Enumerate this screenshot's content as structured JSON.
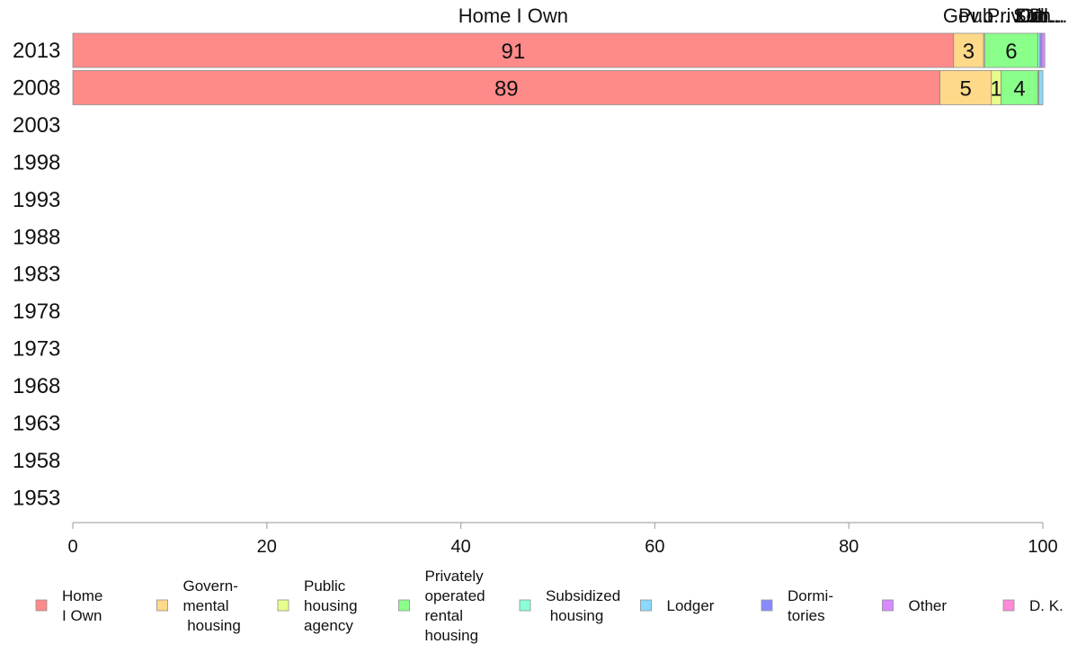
{
  "chart_data": {
    "type": "bar",
    "orientation": "horizontal",
    "stacked": true,
    "categories": [
      "2013",
      "2008",
      "2003",
      "1998",
      "1993",
      "1988",
      "1983",
      "1978",
      "1973",
      "1968",
      "1963",
      "1958",
      "1953"
    ],
    "series": [
      {
        "name": "Home I Own",
        "legend_lines": [
          "Home",
          "I Own"
        ],
        "top_label": "Home I Own",
        "color": "#ff8a8a",
        "values": [
          90.8,
          89.4,
          null,
          null,
          null,
          null,
          null,
          null,
          null,
          null,
          null,
          null,
          null
        ],
        "data_labels": [
          "91",
          "89",
          "",
          "",
          "",
          "",
          "",
          "",
          "",
          "",
          "",
          "",
          ""
        ]
      },
      {
        "name": "Govern-mental housing",
        "legend_lines": [
          "Govern-",
          "mental",
          " housing"
        ],
        "top_label": "Gov...",
        "color": "#ffd98a",
        "values": [
          3.1,
          5.3,
          null,
          null,
          null,
          null,
          null,
          null,
          null,
          null,
          null,
          null,
          null
        ],
        "data_labels": [
          "3",
          "5",
          "",
          "",
          "",
          "",
          "",
          "",
          "",
          "",
          "",
          "",
          ""
        ]
      },
      {
        "name": "Public housing agency",
        "legend_lines": [
          "Public",
          "housing",
          "agency"
        ],
        "top_label": "Pub...",
        "color": "#e6ff8a",
        "values": [
          0.1,
          1.0,
          null,
          null,
          null,
          null,
          null,
          null,
          null,
          null,
          null,
          null,
          null
        ],
        "data_labels": [
          "",
          "1",
          "",
          "",
          "",
          "",
          "",
          "",
          "",
          "",
          "",
          "",
          ""
        ]
      },
      {
        "name": "Privately operated rental housing",
        "legend_lines": [
          "Privately",
          "operated",
          "rental",
          "housing"
        ],
        "top_label": "Priv...",
        "color": "#8aff8a",
        "values": [
          5.5,
          3.8,
          null,
          null,
          null,
          null,
          null,
          null,
          null,
          null,
          null,
          null,
          null
        ],
        "data_labels": [
          "6",
          "4",
          "",
          "",
          "",
          "",
          "",
          "",
          "",
          "",
          "",
          "",
          ""
        ]
      },
      {
        "name": "Subsidized housing",
        "legend_lines": [
          "Subsidized",
          " housing"
        ],
        "top_label": "Sub...",
        "color": "#8affd9",
        "values": [
          0.2,
          0.1,
          null,
          null,
          null,
          null,
          null,
          null,
          null,
          null,
          null,
          null,
          null
        ],
        "data_labels": [
          "",
          "",
          "",
          "",
          "",
          "",
          "",
          "",
          "",
          "",
          "",
          "",
          ""
        ]
      },
      {
        "name": "Lodger",
        "legend_lines": [
          "Lodger"
        ],
        "top_label": "Lod...",
        "color": "#8ad9ff",
        "values": [
          0.0,
          0.4,
          null,
          null,
          null,
          null,
          null,
          null,
          null,
          null,
          null,
          null,
          null
        ],
        "data_labels": [
          "",
          "",
          "",
          "",
          "",
          "",
          "",
          "",
          "",
          "",
          "",
          "",
          ""
        ]
      },
      {
        "name": "Dormi-tories",
        "legend_lines": [
          "Dormi-",
          "tories"
        ],
        "top_label": "Dor...",
        "color": "#8a8aff",
        "values": [
          0.2,
          0.0,
          null,
          null,
          null,
          null,
          null,
          null,
          null,
          null,
          null,
          null,
          null
        ],
        "data_labels": [
          "",
          "",
          "",
          "",
          "",
          "",
          "",
          "",
          "",
          "",
          "",
          "",
          ""
        ]
      },
      {
        "name": "Other",
        "legend_lines": [
          "Other"
        ],
        "top_label": "Oth...",
        "color": "#d98aff",
        "values": [
          0.3,
          0.0,
          null,
          null,
          null,
          null,
          null,
          null,
          null,
          null,
          null,
          null,
          null
        ],
        "data_labels": [
          "",
          "",
          "",
          "",
          "",
          "",
          "",
          "",
          "",
          "",
          "",
          "",
          ""
        ]
      },
      {
        "name": "D. K.",
        "legend_lines": [
          "D. K."
        ],
        "top_label": "D...",
        "color": "#ff8ad9",
        "values": [
          0.0,
          0.0,
          null,
          null,
          null,
          null,
          null,
          null,
          null,
          null,
          null,
          null,
          null
        ],
        "data_labels": [
          "",
          "",
          "",
          "",
          "",
          "",
          "",
          "",
          "",
          "",
          "",
          "",
          ""
        ]
      }
    ],
    "xlim": [
      0,
      100
    ],
    "xticks": [
      0,
      20,
      40,
      60,
      80,
      100
    ],
    "title": "",
    "xlabel": "",
    "ylabel": "",
    "grid": false,
    "legend_position": "bottom"
  }
}
